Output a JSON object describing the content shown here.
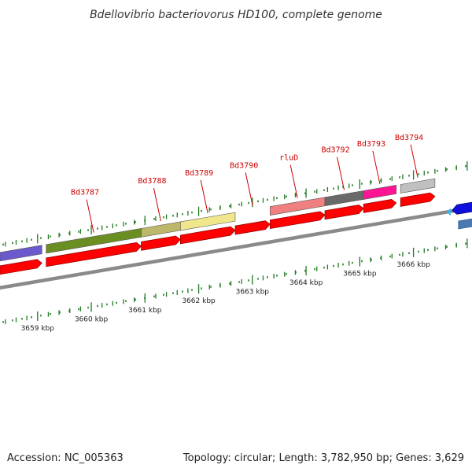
{
  "title": "Bdellovibrio bacteriovorus HD100, complete genome",
  "footer": {
    "accession": "Accession: NC_005363",
    "summary": "Topology: circular; Length: 3,782,950 bp; Genes: 3,629"
  },
  "colors": {
    "background": "#ffffff",
    "backbone": "#8a8a8a",
    "tick": "#1f7a1f",
    "gene_label": "#cc0000",
    "cds": "#ff0000",
    "reverse_cds": "#1010dd",
    "reverse_cds_lower": "#4a78b0",
    "reverse_marker": "#33bbee"
  },
  "track": {
    "slope": -0.1695,
    "start_kbp": 3658.3,
    "kbp_per_x": 0.01465
  },
  "scale_labels": [
    {
      "kbp": 3659,
      "text": "3659 kbp"
    },
    {
      "kbp": 3660,
      "text": "3660 kbp"
    },
    {
      "kbp": 3661,
      "text": "3661 kbp"
    },
    {
      "kbp": 3662,
      "text": "3662 kbp"
    },
    {
      "kbp": 3663,
      "text": "3663 kbp"
    },
    {
      "kbp": 3664,
      "text": "3664 kbp"
    },
    {
      "kbp": 3665,
      "text": "3665 kbp"
    },
    {
      "kbp": 3666,
      "text": "3666 kbp"
    }
  ],
  "genes": [
    {
      "name": "",
      "start_kbp": 3658.3,
      "end_kbp": 3659.08,
      "strand": "+",
      "band_color": "#6a5acd",
      "label": ""
    },
    {
      "name": "Bd3787",
      "start_kbp": 3659.16,
      "end_kbp": 3660.93,
      "strand": "+",
      "band_color": "#6b8e23",
      "label": "Bd3787"
    },
    {
      "name": "Bd3788",
      "start_kbp": 3660.93,
      "end_kbp": 3661.66,
      "strand": "+",
      "band_color": "#bdb76b",
      "label": "Bd3788"
    },
    {
      "name": "Bd3789",
      "start_kbp": 3661.66,
      "end_kbp": 3662.68,
      "strand": "+",
      "band_color": "#f0e68c",
      "label": "Bd3789"
    },
    {
      "name": "Bd3790",
      "start_kbp": 3662.68,
      "end_kbp": 3663.33,
      "strand": "+",
      "band_color": "",
      "label": "Bd3790"
    },
    {
      "name": "rluD",
      "start_kbp": 3663.33,
      "end_kbp": 3664.35,
      "strand": "+",
      "band_color": "#f08080",
      "label": "rluD"
    },
    {
      "name": "Bd3792",
      "start_kbp": 3664.35,
      "end_kbp": 3665.07,
      "strand": "+",
      "band_color": "#696969",
      "label": "Bd3792"
    },
    {
      "name": "Bd3793",
      "start_kbp": 3665.07,
      "end_kbp": 3665.68,
      "strand": "+",
      "band_color": "#ff1493",
      "label": "Bd3793"
    },
    {
      "name": "Bd3794",
      "start_kbp": 3665.76,
      "end_kbp": 3666.4,
      "strand": "+",
      "band_color": "#c0c0c0",
      "label": "Bd3794"
    },
    {
      "name": "",
      "start_kbp": 3666.72,
      "end_kbp": 3667.2,
      "strand": "-",
      "band_color": "",
      "label": ""
    }
  ]
}
